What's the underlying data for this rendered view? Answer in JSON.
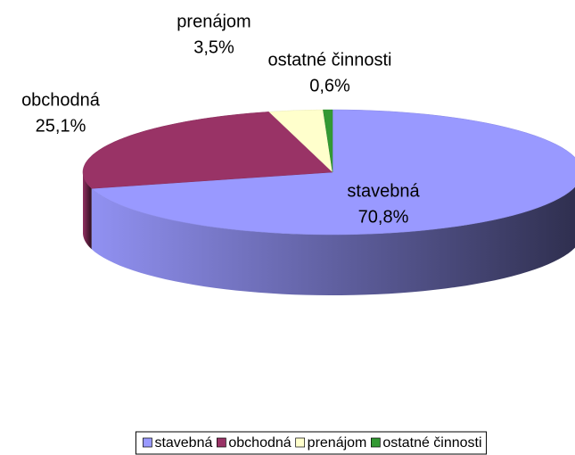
{
  "chart_data": {
    "type": "pie3d",
    "categories": [
      "stavebná",
      "obchodná",
      "prenájom",
      "ostatné činnosti"
    ],
    "values": [
      70.8,
      25.1,
      3.5,
      0.6
    ],
    "value_labels": [
      "70,8%",
      "25,1%",
      "3,5%",
      "0,6%"
    ],
    "colors": [
      "#9999ff",
      "#993366",
      "#ffffcc",
      "#339933"
    ],
    "legend": "bottom"
  }
}
